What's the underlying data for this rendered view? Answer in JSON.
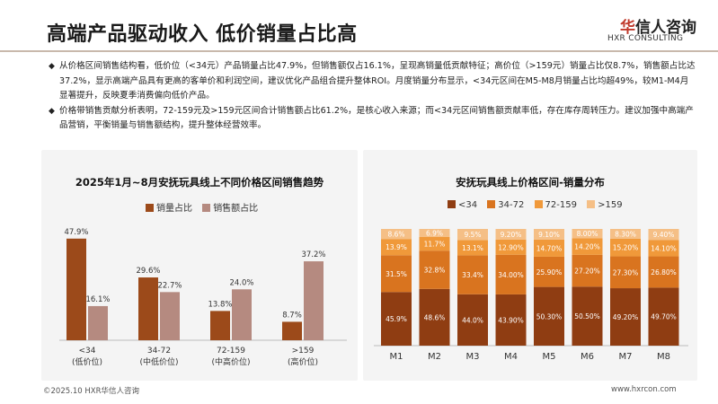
{
  "header": {
    "title": "高端产品驱动收入 低价销量占比高",
    "logo_cn_accent": "华",
    "logo_cn_rest": "信人咨询",
    "logo_en": "HXR CONSULTING"
  },
  "bullets": [
    "从价格区间销售结构看，低价位（<34元）产品销量占比47.9%，但销售额仅占16.1%，呈现高销量低贡献特征；高价位（>159元）销量占比仅8.7%，销售额占比达37.2%，显示高端产品具有更高的客单价和利润空间，建议优化产品组合提升整体ROI。月度销量分布显示，<34元区间在M5-M8月销量占比均超49%，较M1-M4月显著提升，反映夏季消费偏向低价产品。",
    "价格带销售贡献分析表明，72-159元及>159元区间合计销售额占比61.2%，是核心收入来源；而<34元区间销售额贡献率低，存在库存周转压力。建议加强中高端产品营销，平衡销量与销售额结构，提升整体经营效率。"
  ],
  "footer": {
    "copyright": "©2025.10 HXR华信人咨询",
    "website": "www.hxrcon.com"
  },
  "chart_data": [
    {
      "type": "bar",
      "title": "2025年1月~8月安抚玩具线上不同价格区间销售趋势",
      "categories": [
        "<34",
        "34-72",
        "72-159",
        ">159"
      ],
      "category_sublabels": [
        "(低价位)",
        "(中低价位)",
        "(中高价位)",
        "(高价位)"
      ],
      "series": [
        {
          "name": "销量占比",
          "values": [
            47.9,
            29.6,
            13.8,
            8.7
          ],
          "labels": [
            "47.9%",
            "29.6%",
            "13.8%",
            "8.7%"
          ],
          "color": "#9c4a1a"
        },
        {
          "name": "销售额占比",
          "values": [
            16.1,
            22.7,
            24.0,
            37.2
          ],
          "labels": [
            "16.1%",
            "22.7%",
            "24.0%",
            "37.2%"
          ],
          "color": "#b58a80"
        }
      ],
      "ylim": [
        0,
        55
      ],
      "legend": "top-left",
      "grid": false
    },
    {
      "type": "bar",
      "stacked": true,
      "percent": true,
      "title": "安抚玩具线上价格区间-销量分布",
      "categories": [
        "M1",
        "M2",
        "M3",
        "M4",
        "M5",
        "M6",
        "M7",
        "M8"
      ],
      "series": [
        {
          "name": "<34",
          "color": "#8f3d12",
          "values": [
            45.9,
            48.6,
            44.0,
            43.9,
            50.3,
            50.5,
            49.2,
            49.7
          ],
          "labels": [
            "45.9%",
            "48.6%",
            "44.0%",
            "43.90%",
            "50.30%",
            "50.50%",
            "49.20%",
            "49.70%"
          ]
        },
        {
          "name": "34-72",
          "color": "#d9741f",
          "values": [
            31.5,
            32.8,
            33.4,
            34.0,
            25.9,
            27.2,
            27.3,
            26.8
          ],
          "labels": [
            "31.5%",
            "32.8%",
            "33.4%",
            "34.00%",
            "25.90%",
            "27.20%",
            "27.30%",
            "26.80%"
          ]
        },
        {
          "name": "72-159",
          "color": "#f0993a",
          "values": [
            13.9,
            11.7,
            13.1,
            12.9,
            14.7,
            14.2,
            15.2,
            14.1
          ],
          "labels": [
            "13.9%",
            "11.7%",
            "13.1%",
            "12.90%",
            "14.70%",
            "14.20%",
            "15.20%",
            "14.10%"
          ]
        },
        {
          "name": ">159",
          "color": "#f5bf86",
          "values": [
            8.6,
            6.9,
            9.5,
            9.2,
            9.1,
            8.0,
            8.3,
            9.4
          ],
          "labels": [
            "8.6%",
            "6.9%",
            "9.5%",
            "9.20%",
            "9.10%",
            "8.00%",
            "8.30%",
            "9.40%"
          ]
        }
      ],
      "ylim": [
        0,
        100
      ],
      "legend": "top-left",
      "grid": false
    }
  ]
}
